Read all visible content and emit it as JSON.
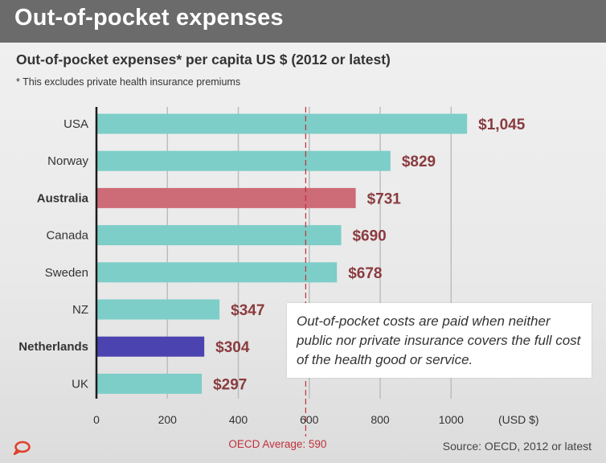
{
  "header": {
    "title": "Out-of-pocket expenses"
  },
  "chart_data": {
    "type": "bar",
    "orientation": "horizontal",
    "title": "Out-of-pocket expenses* per capita US $ (2012 or latest)",
    "subtitle": "* This excludes private health insurance premiums",
    "categories": [
      "USA",
      "Norway",
      "Australia",
      "Canada",
      "Sweden",
      "NZ",
      "Netherlands",
      "UK"
    ],
    "values": [
      1045,
      829,
      731,
      690,
      678,
      347,
      304,
      297
    ],
    "value_labels": [
      "$1,045",
      "$829",
      "$731",
      "$690",
      "$678",
      "$347",
      "$304",
      "$297"
    ],
    "bold_categories": [
      "Australia",
      "Netherlands"
    ],
    "colors": {
      "default": "#7dcec8",
      "Australia": "#cd6b76",
      "Netherlands": "#4b43b0",
      "value_label": "#8a3b3f",
      "reference_line": "#c0303a"
    },
    "x_ticks": [
      "0",
      "200",
      "400",
      "600",
      "800",
      "1000"
    ],
    "x_tick_values": [
      0,
      200,
      400,
      600,
      800,
      1000
    ],
    "x_unit_label": "(USD $)",
    "xlim": [
      0,
      1040
    ],
    "grid": true,
    "reference_line": {
      "value": 590,
      "label": "OECD Average: 590"
    }
  },
  "note": "Out-of-pocket costs are paid when neither public nor private insurance covers the full cost of the health good or service.",
  "source": "Source: OECD, 2012 or latest",
  "logo": {
    "icon": "speech-bubble-logo-icon",
    "color": "#e0402e"
  }
}
